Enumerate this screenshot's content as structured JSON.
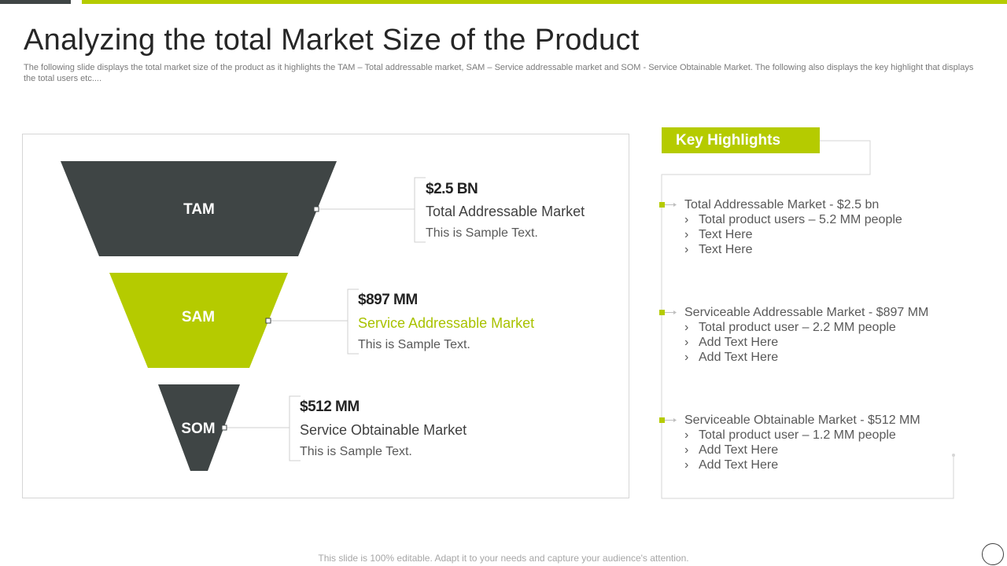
{
  "title": "Analyzing the total Market Size of the Product",
  "subtitle": "The following slide displays the total market size of the product as it highlights the TAM – Total addressable market, SAM – Service addressable market and SOM - Service Obtainable Market. The following also displays the key highlight that displays the total users etc....",
  "colors": {
    "dark": "#3f4545",
    "accent": "#b5cb00",
    "border": "#d6d6d6"
  },
  "funnel": [
    {
      "stage": "TAM",
      "value": "$2.5 BN",
      "name": "Total Addressable Market",
      "sample": "This is Sample Text."
    },
    {
      "stage": "SAM",
      "value": "$897 MM",
      "name": "Service Addressable Market",
      "sample": "This is Sample Text."
    },
    {
      "stage": "SOM",
      "value": "$512 MM",
      "name": "Service Obtainable Market",
      "sample": "This is Sample Text."
    }
  ],
  "key_highlights": {
    "title": "Key Highlights",
    "groups": [
      {
        "head": "Total Addressable Market - $2.5 bn",
        "items": [
          "Total product users – 5.2 MM people",
          "Text Here",
          "Text Here"
        ]
      },
      {
        "head": "Serviceable Addressable Market - $897 MM",
        "items": [
          "Total product user – 2.2 MM people",
          "Add Text Here",
          "Add Text Here"
        ]
      },
      {
        "head": "Serviceable Obtainable Market - $512 MM",
        "items": [
          "Total product user – 1.2 MM people",
          "Add Text Here",
          "Add Text Here"
        ]
      }
    ]
  },
  "bullet_glyph": "›",
  "footer": "This slide is 100% editable. Adapt it to your needs and capture your audience's attention."
}
